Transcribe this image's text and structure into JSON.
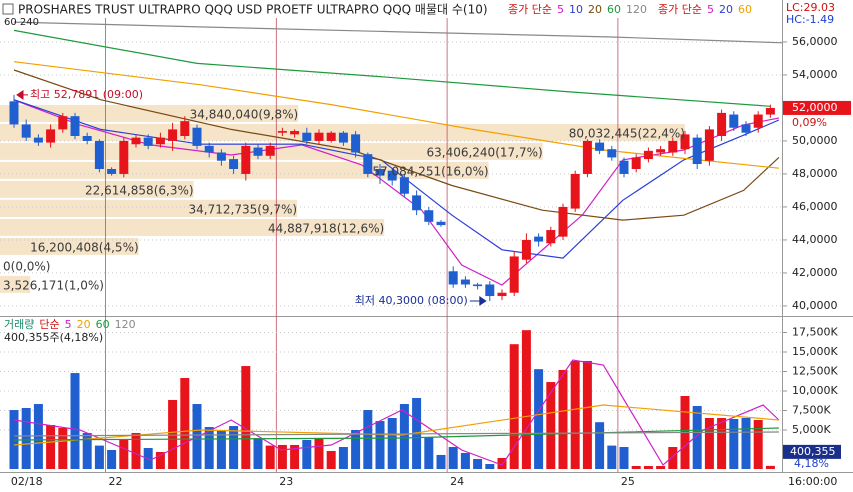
{
  "chart_data": [
    {
      "type": "candlestick",
      "title": "PROSHARES TRUST ULTRAPRO QQQ USD  PROETF ULTRAPRO QQQ 매물대 수(10)",
      "top_left_note": "60  240",
      "categories": [
        "02/18",
        null,
        null,
        null,
        null,
        null,
        null,
        null,
        "22",
        null,
        null,
        null,
        null,
        null,
        null,
        null,
        null,
        null,
        null,
        null,
        null,
        null,
        "23",
        null,
        null,
        null,
        null,
        null,
        null,
        null,
        null,
        null,
        null,
        null,
        null,
        null,
        "24",
        null,
        null,
        null,
        null,
        null,
        null,
        null,
        null,
        null,
        null,
        null,
        null,
        null,
        "25",
        null,
        null,
        null,
        null,
        null,
        null,
        null,
        null,
        null,
        null,
        null,
        null
      ],
      "candles": {
        "open": [
          52.4,
          51.0,
          50.2,
          49.9,
          50.7,
          51.5,
          50.3,
          50.0,
          48.3,
          48.0,
          49.8,
          50.2,
          49.8,
          50.0,
          50.3,
          50.8,
          49.7,
          49.3,
          48.9,
          48.0,
          49.6,
          49.1,
          50.5,
          50.4,
          50.5,
          50.0,
          50.0,
          50.5,
          50.4,
          49.2,
          48.3,
          48.2,
          47.8,
          46.7,
          45.8,
          45.1,
          42.1,
          41.6,
          41.3,
          41.3,
          40.6,
          40.8,
          42.8,
          44.2,
          43.8,
          44.2,
          45.9,
          48.0,
          49.9,
          49.5,
          48.8,
          48.3,
          48.9,
          49.3,
          49.3,
          49.5,
          50.2,
          48.8,
          50.3,
          51.6,
          51.0,
          50.8,
          51.6
        ],
        "high": [
          52.7891,
          51.3,
          50.4,
          51.0,
          51.7,
          51.7,
          50.5,
          50.1,
          48.4,
          50.2,
          50.4,
          50.4,
          50.5,
          51.1,
          51.5,
          51.0,
          49.9,
          49.5,
          49.1,
          49.9,
          49.8,
          49.9,
          50.8,
          50.7,
          50.8,
          50.7,
          50.6,
          50.6,
          50.6,
          49.3,
          48.6,
          48.3,
          48.0,
          47.0,
          46.0,
          45.2,
          42.4,
          41.8,
          41.4,
          41.5,
          41.0,
          43.3,
          44.4,
          44.4,
          44.8,
          46.2,
          48.2,
          50.1,
          50.1,
          49.7,
          49.0,
          49.2,
          49.6,
          49.7,
          50.2,
          50.6,
          50.4,
          50.9,
          51.9,
          51.8,
          51.2,
          51.8,
          52.2
        ],
        "low": [
          50.8,
          50.0,
          49.7,
          49.6,
          50.5,
          50.1,
          49.8,
          48.1,
          47.9,
          47.8,
          49.6,
          49.5,
          49.6,
          49.4,
          50.1,
          49.5,
          49.0,
          48.5,
          48.0,
          47.6,
          48.9,
          48.9,
          50.3,
          50.2,
          49.8,
          49.8,
          49.9,
          49.7,
          49.0,
          47.8,
          47.4,
          47.3,
          46.6,
          45.5,
          44.9,
          44.8,
          41.1,
          41.1,
          41.0,
          40.3,
          40.35,
          40.6,
          42.6,
          43.6,
          43.6,
          44.0,
          45.7,
          47.8,
          49.2,
          48.8,
          47.8,
          48.1,
          48.7,
          49.1,
          49.1,
          49.2,
          48.3,
          48.5,
          50.0,
          50.6,
          50.3,
          50.5,
          51.4
        ],
        "close": [
          51.0,
          50.2,
          49.9,
          50.7,
          51.5,
          50.3,
          50.0,
          48.3,
          48.0,
          50.0,
          50.2,
          49.7,
          50.2,
          50.7,
          51.2,
          49.7,
          49.3,
          48.8,
          48.3,
          49.7,
          49.1,
          49.7,
          50.6,
          50.6,
          50.0,
          50.5,
          50.5,
          49.9,
          49.3,
          48.0,
          47.9,
          47.6,
          46.8,
          45.8,
          45.1,
          44.9,
          41.3,
          41.3,
          41.2,
          40.6,
          40.8,
          43.0,
          44.0,
          43.9,
          44.6,
          46.0,
          48.0,
          50.0,
          49.4,
          49.0,
          48.0,
          49.0,
          49.4,
          49.5,
          50.0,
          50.4,
          48.6,
          50.7,
          51.7,
          50.8,
          50.5,
          51.6,
          52.0
        ]
      },
      "up_color": "#e8141b",
      "down_color": "#1f5fd0",
      "ylim": [
        39.39,
        57.33
      ],
      "yticks": [
        {
          "value": 56,
          "label": "56,0000"
        },
        {
          "value": 54,
          "label": "54,0000"
        },
        {
          "value": 50,
          "label": "50,0000"
        },
        {
          "value": 48,
          "label": "48,0000"
        },
        {
          "value": 46,
          "label": "46,0000"
        },
        {
          "value": 44,
          "label": "44,0000"
        },
        {
          "value": 42,
          "label": "42,0000"
        },
        {
          "value": 40,
          "label": "40,0000"
        }
      ],
      "grid": true,
      "legend_prefix": "종가 단순",
      "series": [
        {
          "name": "5",
          "color": "#d020c8",
          "legend": 1,
          "x": [
            0,
            5.4,
            11.2,
            17.8,
            23.6,
            28.5,
            33.4,
            36.7,
            40.0,
            43.3,
            46.6,
            49.9,
            54.9,
            59.8,
            62.7
          ],
          "values": [
            52.48,
            50.97,
            49.76,
            49.15,
            49.76,
            48.55,
            45.82,
            42.48,
            41.27,
            43.39,
            45.52,
            48.85,
            49.45,
            50.97,
            51.39
          ]
        },
        {
          "name": "10",
          "color": "#2a3fd8",
          "legend": 1,
          "x": [
            0,
            7.1,
            15.3,
            23.6,
            30.1,
            35.9,
            40.0,
            45.0,
            49.9,
            54.9,
            59.8,
            62.7
          ],
          "values": [
            52.5,
            50.7,
            49.8,
            49.8,
            48.85,
            45.5,
            43.4,
            42.9,
            46.4,
            48.85,
            50.35,
            51.27
          ]
        },
        {
          "name": "20",
          "color": "#7a4a12",
          "legend": 1,
          "x": [
            0,
            7.1,
            17.8,
            27.7,
            35.9,
            43.3,
            49.9,
            54.9,
            59.8,
            62.7
          ],
          "values": [
            54.3,
            52.5,
            50.7,
            49.45,
            47.3,
            45.8,
            45.2,
            45.5,
            47.0,
            49.0
          ]
        },
        {
          "name": "60",
          "color": "#1e9a3c",
          "legend": 1,
          "x": [
            0,
            15,
            30,
            45,
            62
          ],
          "values": [
            56.7,
            54.7,
            53.9,
            53.0,
            52.1
          ]
        },
        {
          "name": "120",
          "color": "#888888",
          "legend": 1,
          "x": [
            0,
            16,
            32,
            49,
            63
          ],
          "values": [
            57.2,
            56.9,
            56.6,
            56.3,
            55.95
          ]
        },
        {
          "name": "60",
          "color": "#f0a000",
          "legend": 2,
          "x": [
            0,
            15.3,
            26,
            37.6,
            48.3,
            62.7
          ],
          "values": [
            54.8,
            53.4,
            52.2,
            50.7,
            49.45,
            48.35
          ]
        }
      ],
      "legend2_prefix": "종가 단순",
      "legend2_items": [
        {
          "name": "5",
          "color": "#d020c8"
        },
        {
          "name": "20",
          "color": "#2a3fd8"
        }
      ],
      "annotations": [
        {
          "kind": "high",
          "value": 52.7891,
          "text": "최고 52,7891 (09:00)",
          "color": "#c0102a"
        },
        {
          "kind": "low",
          "value": 40.3,
          "text": "최저 40,3000 (08:00)",
          "color": "#1a2f9a"
        }
      ],
      "last_price": {
        "value": 52,
        "label": "52,0000"
      },
      "change_label": "0,09%",
      "lc_label": "LC:29.03",
      "hc_label": "HC:-1.49",
      "volume_profile": {
        "color": "#f5dfbf",
        "bins": [
          40.73,
          41.88,
          43.03,
          44.18,
          45.33,
          46.49,
          47.64,
          48.79,
          49.94,
          51.09,
          52.24
        ],
        "values": [
          3526171,
          0,
          16200408,
          44887918,
          34712735,
          22614858,
          57084251,
          63406240,
          80032445,
          34840040
        ],
        "value_labels": [
          "3,526,171(1,0%)",
          "0(0,0%)",
          "16,200,408(4,5%)",
          "44,887,918(12,6%)",
          "34,712,735(9,7%)",
          "22,614,858(6,3%)",
          "57,084,251(16,0%)",
          "63,406,240(17,7%)",
          "80,032,445(22,4%)",
          "34,840,040(9,8%)"
        ]
      },
      "time_label": "16:00:00"
    },
    {
      "type": "bar",
      "legend_title": "거래량",
      "legend_prefix": "단순",
      "values": [
        7560,
        7820,
        8330,
        5640,
        5260,
        12300,
        4620,
        3000,
        2440,
        3720,
        4620,
        2690,
        2180,
        8850,
        11670,
        8330,
        5380,
        5000,
        5510,
        13200,
        3970,
        3000,
        3080,
        3080,
        3720,
        3850,
        2310,
        2820,
        5000,
        7560,
        6150,
        6540,
        8330,
        9100,
        4100,
        1800,
        2820,
        2050,
        1280,
        640,
        1410,
        16000,
        17800,
        12800,
        11150,
        12700,
        13850,
        13850,
        6000,
        3000,
        2820,
        385,
        385,
        385,
        2820,
        9360,
        8080,
        6540,
        6540,
        6410,
        6540,
        6280,
        400.355
      ],
      "ylim": [
        0,
        19360
      ],
      "yticks": [
        {
          "value": 17500,
          "label": "17,500K"
        },
        {
          "value": 15000,
          "label": "15,000K"
        },
        {
          "value": 12500,
          "label": "12,500K"
        },
        {
          "value": 10000,
          "label": "10,000K"
        },
        {
          "value": 7500,
          "label": "7,500K"
        },
        {
          "value": 5000,
          "label": "5,000K"
        }
      ],
      "series": [
        {
          "name": "5",
          "color": "#d020c8",
          "x": [
            0,
            5.4,
            11.2,
            17.8,
            21.9,
            26,
            31.8,
            36.7,
            40,
            45.8,
            48.3,
            53.2,
            56.5,
            61.4,
            62.7
          ],
          "values": [
            6280,
            5000,
            1150,
            6280,
            2440,
            3080,
            7560,
            2440,
            510,
            13970,
            13330,
            510,
            5000,
            8200,
            6280
          ]
        },
        {
          "name": "20",
          "color": "#f0a000",
          "x": [
            0,
            15.3,
            31.8,
            48.3,
            62.7
          ],
          "values": [
            3080,
            5000,
            4360,
            8200,
            6280
          ]
        },
        {
          "name": "60",
          "color": "#1e9a3c",
          "x": [
            0,
            31.8,
            62.7
          ],
          "values": [
            3720,
            3970,
            5260
          ]
        },
        {
          "name": "120",
          "color": "#888888",
          "x": [
            0,
            62.7
          ],
          "values": [
            4230,
            4740
          ]
        }
      ],
      "last_volume_label": "400,355",
      "ratio_label": "4,18%",
      "volume_note": "400,355주(4,18%)"
    }
  ]
}
